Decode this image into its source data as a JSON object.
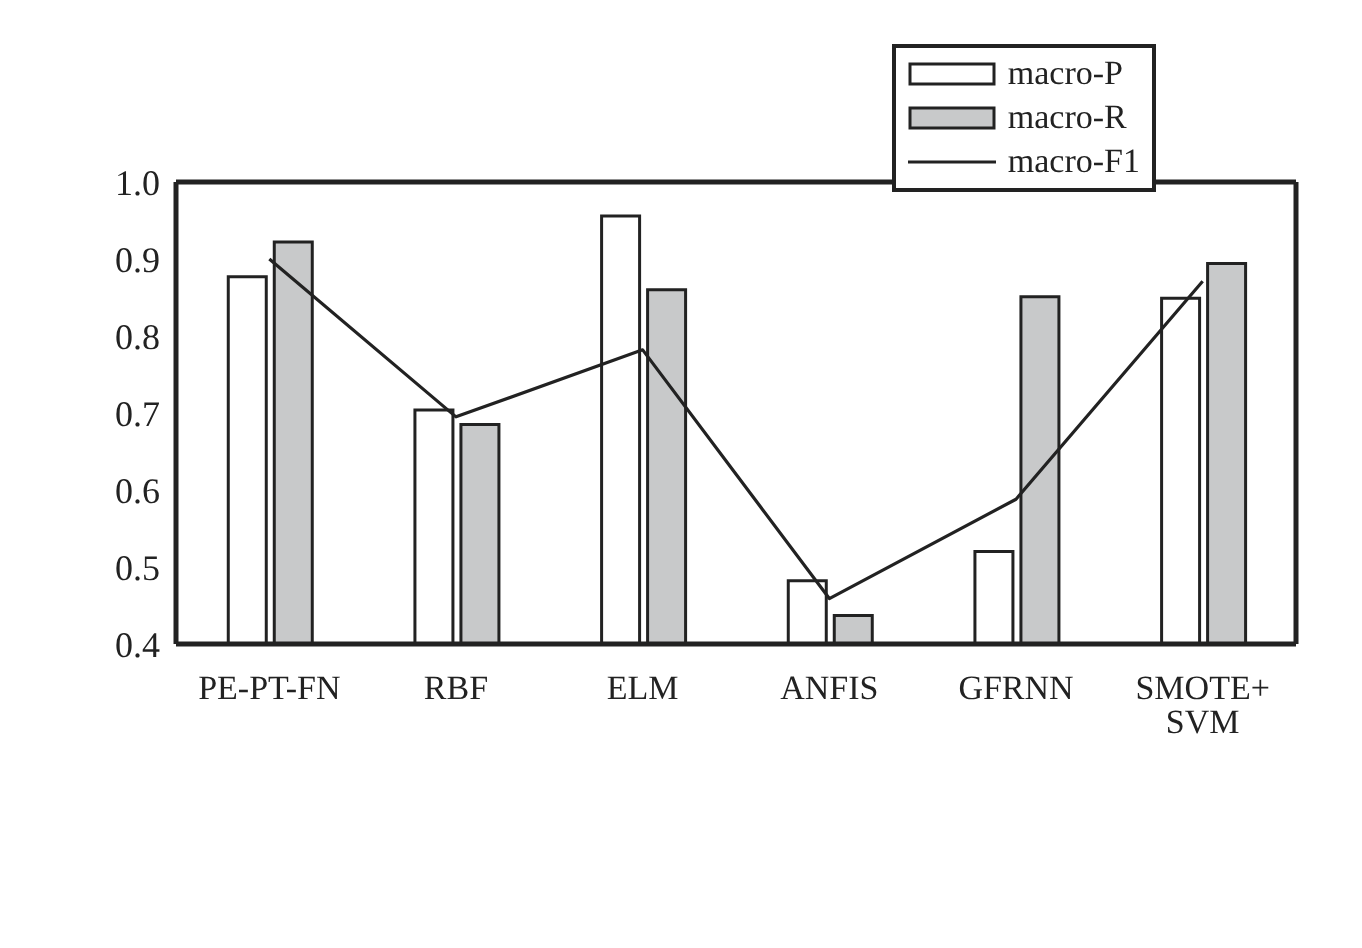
{
  "chart_data": {
    "type": "bar",
    "categories": [
      "PE-PT-FN",
      "RBF",
      "ELM",
      "ANFIS",
      "GFRNN",
      "SMOTE+\nSVM"
    ],
    "series": [
      {
        "name": "macro-P",
        "color": "#ffffff",
        "values": [
          0.877,
          0.704,
          0.956,
          0.482,
          0.52,
          0.849
        ]
      },
      {
        "name": "macro-R",
        "color": "#c8c9ca",
        "values": [
          0.922,
          0.685,
          0.86,
          0.437,
          0.851,
          0.894
        ]
      },
      {
        "name": "macro-F1",
        "type": "line",
        "color": "#222222",
        "values": [
          0.9,
          0.695,
          0.782,
          0.459,
          0.588,
          0.871
        ]
      }
    ],
    "ylim": [
      0.4,
      1.0
    ],
    "yticks": [
      0.4,
      0.5,
      0.6,
      0.7,
      0.8,
      0.9,
      {
        "value": 1.0,
        "label": "1.0"
      }
    ],
    "grid": false,
    "legend": "top right",
    "marker": "none",
    "line_style": "solid"
  }
}
